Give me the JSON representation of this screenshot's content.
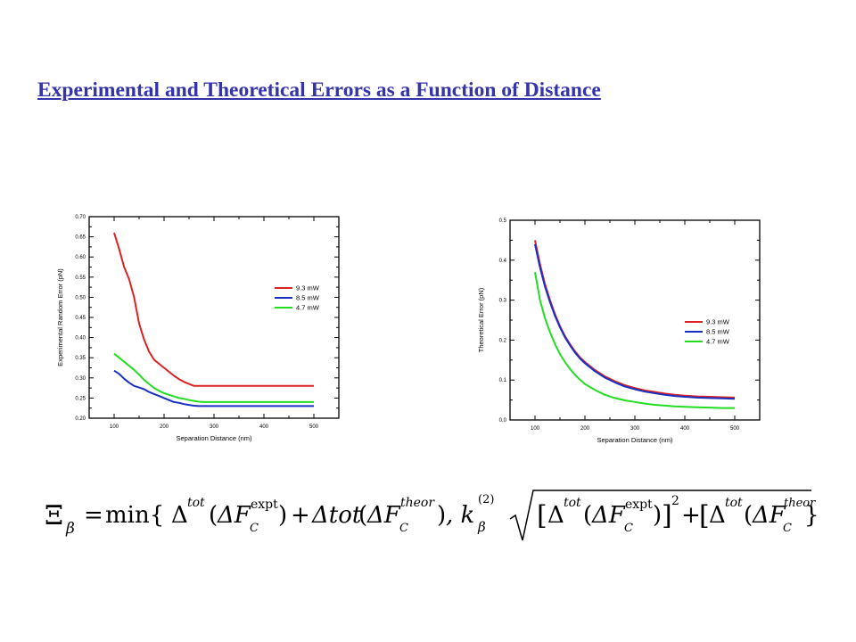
{
  "page": {
    "title": "Experimental and Theoretical Errors as a Function of Distance"
  },
  "chart_data": [
    {
      "type": "line",
      "xlabel": "Separation Distance (nm)",
      "ylabel": "Experimental Random Error (pN)",
      "xlim": [
        50,
        550
      ],
      "ylim": [
        0.2,
        0.7
      ],
      "xticks": [
        100,
        200,
        300,
        400,
        500
      ],
      "yticks": [
        0.2,
        0.25,
        0.3,
        0.35,
        0.4,
        0.45,
        0.5,
        0.55,
        0.6,
        0.65,
        0.7
      ],
      "yticks_format": "2dp",
      "grid": false,
      "legend": "right",
      "series": [
        {
          "name": "9.3 mW",
          "color": "#dd2222",
          "x": [
            100,
            110,
            120,
            130,
            140,
            150,
            160,
            170,
            180,
            190,
            200,
            210,
            220,
            230,
            240,
            250,
            260,
            270,
            280,
            300,
            350,
            400,
            450,
            500
          ],
          "y": [
            0.66,
            0.62,
            0.575,
            0.545,
            0.5,
            0.435,
            0.395,
            0.365,
            0.345,
            0.335,
            0.325,
            0.315,
            0.305,
            0.297,
            0.29,
            0.285,
            0.28,
            0.28,
            0.28,
            0.28,
            0.28,
            0.28,
            0.28,
            0.28
          ]
        },
        {
          "name": "8.5 mW",
          "color": "#1a2fbf",
          "x": [
            100,
            110,
            120,
            130,
            140,
            150,
            160,
            170,
            180,
            190,
            200,
            210,
            220,
            230,
            240,
            250,
            260,
            270,
            280,
            300,
            350,
            400,
            450,
            500
          ],
          "y": [
            0.318,
            0.31,
            0.298,
            0.288,
            0.28,
            0.276,
            0.272,
            0.265,
            0.26,
            0.255,
            0.25,
            0.245,
            0.24,
            0.238,
            0.235,
            0.233,
            0.231,
            0.23,
            0.23,
            0.23,
            0.23,
            0.23,
            0.23,
            0.23
          ]
        },
        {
          "name": "4.7 mW",
          "color": "#22dd22",
          "x": [
            100,
            110,
            120,
            130,
            140,
            150,
            160,
            170,
            180,
            190,
            200,
            210,
            220,
            230,
            240,
            250,
            260,
            270,
            280,
            300,
            350,
            400,
            450,
            500
          ],
          "y": [
            0.36,
            0.35,
            0.34,
            0.33,
            0.32,
            0.308,
            0.295,
            0.285,
            0.275,
            0.268,
            0.262,
            0.258,
            0.254,
            0.25,
            0.248,
            0.245,
            0.243,
            0.241,
            0.24,
            0.24,
            0.24,
            0.24,
            0.24,
            0.24
          ]
        }
      ]
    },
    {
      "type": "line",
      "xlabel": "Separation Distance (nm)",
      "ylabel": "Theoretical Error (pN)",
      "xlim": [
        50,
        550
      ],
      "ylim": [
        0.0,
        0.5
      ],
      "xticks": [
        100,
        200,
        300,
        400,
        500
      ],
      "yticks": [
        0.0,
        0.1,
        0.2,
        0.3,
        0.4,
        0.5
      ],
      "yticks_format": "1dp",
      "grid": false,
      "legend": "right",
      "series": [
        {
          "name": "9.3 mW",
          "color": "#dd2222",
          "x": [
            100,
            110,
            120,
            130,
            140,
            150,
            160,
            170,
            180,
            190,
            200,
            220,
            240,
            260,
            280,
            300,
            320,
            340,
            360,
            380,
            400,
            425,
            450,
            475,
            500
          ],
          "y": [
            0.45,
            0.39,
            0.34,
            0.3,
            0.265,
            0.235,
            0.21,
            0.19,
            0.172,
            0.157,
            0.145,
            0.125,
            0.109,
            0.097,
            0.087,
            0.08,
            0.074,
            0.07,
            0.066,
            0.063,
            0.061,
            0.059,
            0.058,
            0.057,
            0.056
          ]
        },
        {
          "name": "8.5 mW",
          "color": "#1a2fbf",
          "x": [
            100,
            110,
            120,
            130,
            140,
            150,
            160,
            170,
            180,
            190,
            200,
            220,
            240,
            260,
            280,
            300,
            320,
            340,
            360,
            380,
            400,
            425,
            450,
            475,
            500
          ],
          "y": [
            0.44,
            0.382,
            0.334,
            0.295,
            0.261,
            0.232,
            0.207,
            0.187,
            0.169,
            0.154,
            0.142,
            0.122,
            0.106,
            0.094,
            0.084,
            0.077,
            0.071,
            0.067,
            0.063,
            0.06,
            0.058,
            0.056,
            0.055,
            0.054,
            0.053
          ]
        },
        {
          "name": "4.7 mW",
          "color": "#22dd22",
          "x": [
            100,
            110,
            120,
            130,
            140,
            150,
            160,
            170,
            180,
            190,
            200,
            220,
            240,
            260,
            280,
            300,
            320,
            340,
            360,
            380,
            400,
            425,
            450,
            475,
            500
          ],
          "y": [
            0.37,
            0.3,
            0.255,
            0.22,
            0.19,
            0.165,
            0.145,
            0.128,
            0.113,
            0.101,
            0.09,
            0.075,
            0.063,
            0.055,
            0.049,
            0.045,
            0.041,
            0.038,
            0.036,
            0.034,
            0.033,
            0.032,
            0.031,
            0.03,
            0.03
          ]
        }
      ]
    }
  ],
  "formula": {
    "lhs_symbol": "Ξ",
    "lhs_sub": "β",
    "equals": "=",
    "min_open": "min{",
    "delta": "Δ",
    "tot": "tot",
    "paren_open": "(",
    "delta_F": "ΔF",
    "sub_c": "C",
    "sup_expt": "expt",
    "paren_close": ")",
    "plus": "+",
    "delta_tot_text": "Δtot",
    "sup_theor": "theor",
    "comma_k": ", k",
    "k_sup": "(2)",
    "k_sub": "β",
    "bracket_open": "[",
    "bracket_close": "]",
    "square": "2",
    "brace_close": "}"
  }
}
